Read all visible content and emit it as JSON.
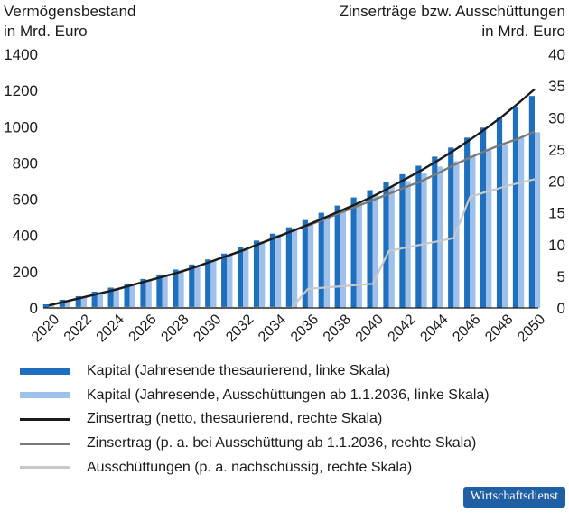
{
  "chart_data": {
    "type": "bar",
    "ylabel_left": "Vermögensbestand\nin Mrd. Euro",
    "ylabel_right": "Zinserträge bzw. Ausschüttungen\nin Mrd. Euro",
    "ylim_left": [
      0,
      1400
    ],
    "ylim_right": [
      0,
      40
    ],
    "left_ticks": [
      "0",
      "200",
      "400",
      "600",
      "800",
      "1000",
      "1200",
      "1400"
    ],
    "right_ticks": [
      "0",
      "5",
      "10",
      "15",
      "20",
      "25",
      "30",
      "35",
      "40"
    ],
    "x_tick_labels": [
      "2020",
      "2022",
      "2024",
      "2026",
      "2028",
      "2030",
      "2032",
      "2034",
      "2036",
      "2038",
      "2040",
      "2042",
      "2044",
      "2046",
      "2048",
      "2050"
    ],
    "x": [
      2020,
      2021,
      2022,
      2023,
      2024,
      2025,
      2026,
      2027,
      2028,
      2029,
      2030,
      2031,
      2032,
      2033,
      2034,
      2035,
      2036,
      2037,
      2038,
      2039,
      2040,
      2041,
      2042,
      2043,
      2044,
      2045,
      2046,
      2047,
      2048,
      2049,
      2050
    ],
    "series": [
      {
        "name": "Kapital (Jahresende thesaurierend, linke Skala)",
        "kind": "bar",
        "axis": "left",
        "color": "#1f6fbf",
        "values": [
          20,
          45,
          65,
          90,
          112,
          135,
          160,
          185,
          212,
          240,
          268,
          300,
          335,
          372,
          410,
          445,
          485,
          525,
          565,
          610,
          650,
          695,
          738,
          785,
          835,
          885,
          940,
          995,
          1050,
          1110,
          1170
        ]
      },
      {
        "name": "Kapital (Jahresende, Ausschüttungen ab 1.1.2036, linke Skala)",
        "kind": "bar",
        "axis": "left",
        "color": "#9ec0ea",
        "values": [
          18,
          43,
          62,
          87,
          108,
          130,
          155,
          180,
          207,
          235,
          263,
          295,
          330,
          367,
          405,
          440,
          470,
          505,
          545,
          585,
          625,
          668,
          700,
          742,
          780,
          810,
          840,
          870,
          900,
          940,
          970
        ]
      },
      {
        "name": "Zinsertrag (netto, thesaurierend, rechte Skala)",
        "kind": "line",
        "axis": "right",
        "color": "#1a1a1a",
        "values": [
          0.4,
          1.0,
          1.6,
          2.2,
          2.8,
          3.5,
          4.2,
          4.9,
          5.6,
          6.4,
          7.3,
          8.2,
          9.1,
          10.1,
          11.1,
          12.1,
          13.1,
          14.2,
          15.3,
          16.4,
          17.6,
          18.9,
          20.3,
          21.7,
          23.2,
          24.8,
          26.5,
          28.3,
          30.2,
          32.3,
          34.5
        ]
      },
      {
        "name": "Zinsertrag (p. a. bei Ausschüttung ab 1.1.2036, rechte Skala)",
        "kind": "line",
        "axis": "right",
        "color": "#7a7a7a",
        "values": [
          0.4,
          1.0,
          1.6,
          2.2,
          2.8,
          3.5,
          4.2,
          4.9,
          5.6,
          6.4,
          7.3,
          8.2,
          9.1,
          10.1,
          11.1,
          12.1,
          13.0,
          14.0,
          15.0,
          16.0,
          17.0,
          18.0,
          19.0,
          20.0,
          21.2,
          22.5,
          23.7,
          24.8,
          25.8,
          26.7,
          27.8
        ]
      },
      {
        "name": "Ausschüttungen (p. a. nachschüssig, rechte Skala)",
        "kind": "line",
        "axis": "right",
        "color": "#c8c8c8",
        "values": [
          0,
          0,
          0,
          0,
          0,
          0,
          0,
          0,
          0,
          0,
          0,
          0,
          0,
          0,
          0,
          0,
          3.0,
          3.2,
          3.4,
          3.6,
          3.8,
          9.0,
          9.5,
          10.0,
          10.5,
          11.0,
          17.5,
          18.3,
          19.0,
          19.7,
          20.3
        ]
      }
    ],
    "grid": false,
    "legend_position": "bottom"
  },
  "badge": "Wirtschaftsdienst"
}
